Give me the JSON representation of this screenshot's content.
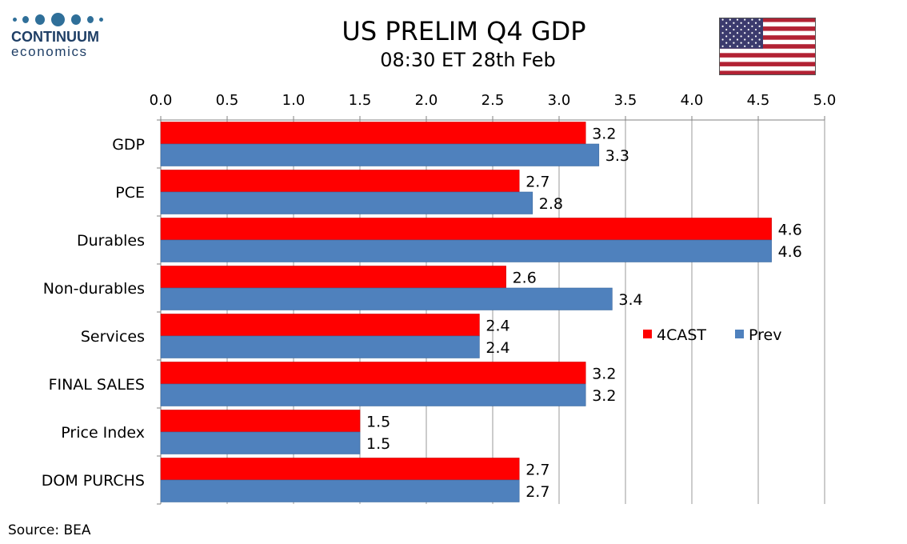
{
  "logo": {
    "name": "CONTINUUM",
    "sub": "economics"
  },
  "header": {
    "title": "US PRELIM Q4  GDP",
    "subtitle": "08:30 ET 28th Feb"
  },
  "footer": {
    "source": "Source: BEA"
  },
  "colors": {
    "forecast": "#ff0000",
    "previous": "#4f81bd",
    "grid": "#999999"
  },
  "chart_data": {
    "type": "bar",
    "orientation": "horizontal",
    "categories": [
      "GDP",
      "PCE",
      "Durables",
      "Non-durables",
      "Services",
      "FINAL SALES",
      "Price Index",
      "DOM PURCHS"
    ],
    "series": [
      {
        "name": "4CAST",
        "values": [
          3.2,
          2.7,
          4.6,
          2.6,
          2.4,
          3.2,
          1.5,
          2.7
        ]
      },
      {
        "name": "Prev",
        "values": [
          3.3,
          2.8,
          4.6,
          3.4,
          2.4,
          3.2,
          1.5,
          2.7
        ]
      }
    ],
    "xlim": [
      0,
      5
    ],
    "xticks": [
      "0.0",
      "0.5",
      "1.0",
      "1.5",
      "2.0",
      "2.5",
      "3.0",
      "3.5",
      "4.0",
      "4.5",
      "5.0"
    ],
    "xaxis_position": "top",
    "grid": true,
    "legend_position": "right"
  }
}
